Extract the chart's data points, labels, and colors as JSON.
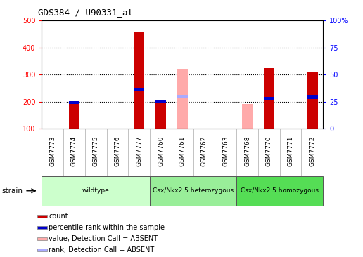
{
  "title": "GDS384 / U90331_at",
  "samples": [
    "GSM7773",
    "GSM7774",
    "GSM7775",
    "GSM7776",
    "GSM7777",
    "GSM7760",
    "GSM7761",
    "GSM7762",
    "GSM7763",
    "GSM7768",
    "GSM7770",
    "GSM7771",
    "GSM7772"
  ],
  "count_values": [
    null,
    190,
    null,
    null,
    460,
    205,
    null,
    null,
    null,
    null,
    325,
    null,
    312
  ],
  "percentile_values": [
    null,
    196,
    null,
    null,
    243,
    200,
    null,
    null,
    null,
    null,
    210,
    null,
    215
  ],
  "absent_value_values": [
    null,
    null,
    null,
    null,
    null,
    null,
    320,
    null,
    null,
    192,
    null,
    null,
    null
  ],
  "absent_rank_values": [
    null,
    null,
    null,
    null,
    null,
    null,
    218,
    null,
    null,
    null,
    null,
    null,
    null
  ],
  "groups": [
    {
      "label": "wildtype",
      "start": 0,
      "end": 5
    },
    {
      "label": "Csx/Nkx2.5 heterozygous",
      "start": 5,
      "end": 9
    },
    {
      "label": "Csx/Nkx2.5 homozygous",
      "start": 9,
      "end": 13
    }
  ],
  "group_colors": [
    "#ccffcc",
    "#99ee99",
    "#55dd55"
  ],
  "ylim_left": [
    100,
    500
  ],
  "ylim_right": [
    0,
    100
  ],
  "yticks_left": [
    100,
    200,
    300,
    400,
    500
  ],
  "yticks_right": [
    0,
    25,
    50,
    75,
    100
  ],
  "ytick_labels_right": [
    "0",
    "25",
    "50",
    "75",
    "100%"
  ],
  "bar_width": 0.5,
  "count_color": "#cc0000",
  "percentile_color": "#0000cc",
  "absent_value_color": "#ffaaaa",
  "absent_rank_color": "#aaaaff",
  "legend_items": [
    {
      "label": "count",
      "color": "#cc0000"
    },
    {
      "label": "percentile rank within the sample",
      "color": "#0000cc"
    },
    {
      "label": "value, Detection Call = ABSENT",
      "color": "#ffaaaa"
    },
    {
      "label": "rank, Detection Call = ABSENT",
      "color": "#aaaaff"
    }
  ]
}
